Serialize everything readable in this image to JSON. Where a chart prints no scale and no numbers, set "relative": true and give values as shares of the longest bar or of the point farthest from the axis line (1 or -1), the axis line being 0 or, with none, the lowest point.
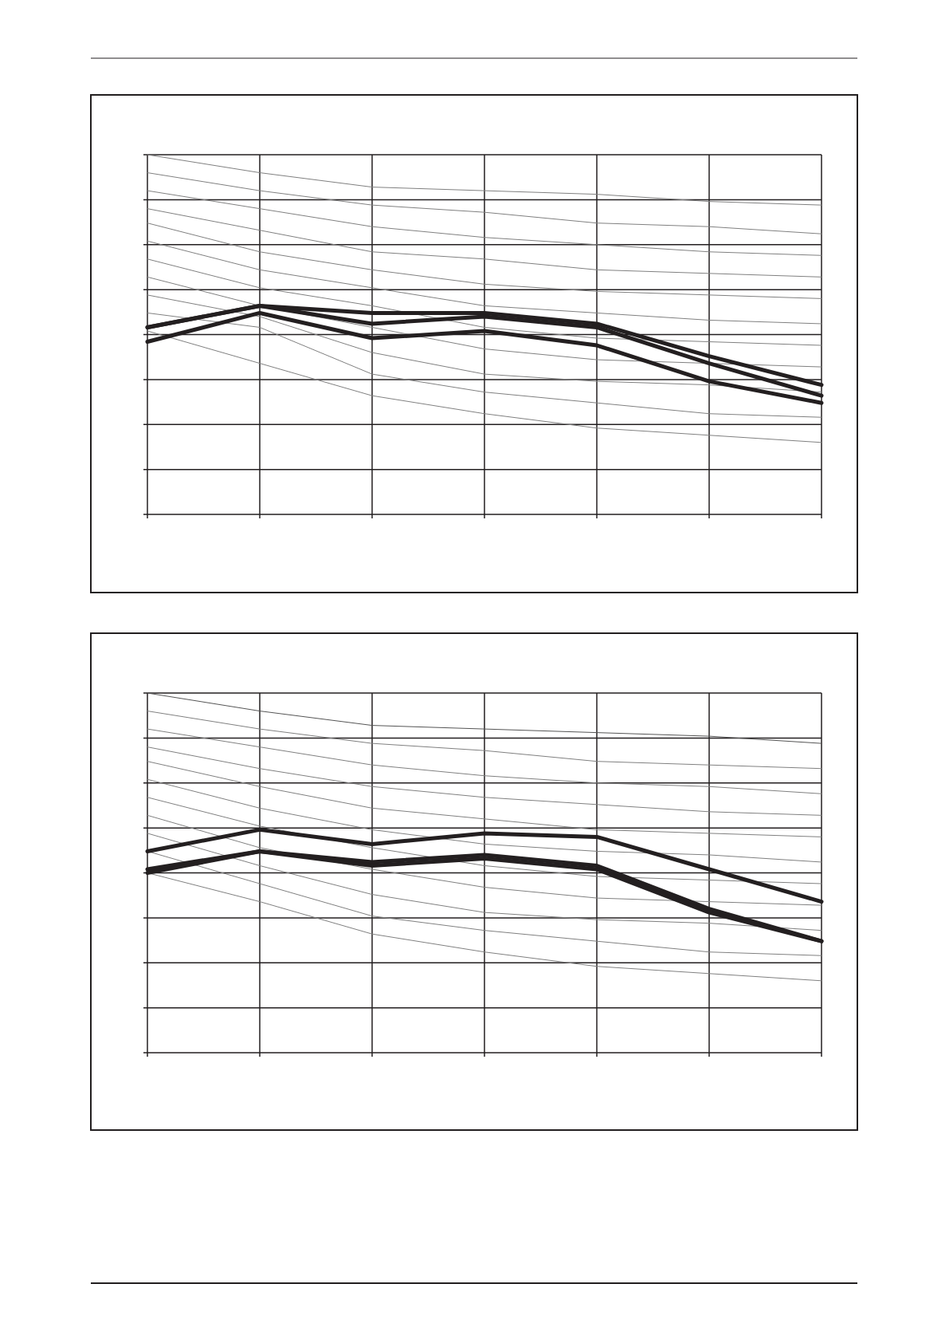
{
  "chart_data": [
    {
      "type": "line",
      "categories": [
        null,
        null,
        null,
        null,
        null,
        null,
        null
      ],
      "relative": true,
      "grid": true,
      "series": [
        {
          "color": "#808080",
          "values": [
            1.0,
            0.95,
            0.91,
            0.9,
            0.89,
            0.87,
            0.86
          ]
        },
        {
          "color": "#808080",
          "values": [
            0.95,
            0.9,
            0.86,
            0.84,
            0.81,
            0.8,
            0.78
          ]
        },
        {
          "color": "#808080",
          "values": [
            0.9,
            0.85,
            0.8,
            0.77,
            0.75,
            0.73,
            0.72
          ]
        },
        {
          "color": "#808080",
          "values": [
            0.85,
            0.79,
            0.73,
            0.71,
            0.68,
            0.67,
            0.66
          ]
        },
        {
          "color": "#808080",
          "values": [
            0.81,
            0.73,
            0.68,
            0.64,
            0.62,
            0.61,
            0.6
          ]
        },
        {
          "color": "#808080",
          "values": [
            0.76,
            0.68,
            0.63,
            0.58,
            0.56,
            0.54,
            0.53
          ]
        },
        {
          "color": "#808080",
          "values": [
            0.71,
            0.63,
            0.58,
            0.52,
            0.49,
            0.48,
            0.47
          ]
        },
        {
          "color": "#808080",
          "values": [
            0.66,
            0.58,
            0.52,
            0.46,
            0.43,
            0.42,
            0.41
          ]
        },
        {
          "color": "#808080",
          "values": [
            0.61,
            0.55,
            0.45,
            0.39,
            0.37,
            0.36,
            0.34
          ]
        },
        {
          "color": "#808080",
          "values": [
            0.56,
            0.52,
            0.39,
            0.34,
            0.31,
            0.28,
            0.27
          ]
        },
        {
          "color": "#808080",
          "values": [
            0.51,
            0.42,
            0.33,
            0.28,
            0.24,
            0.22,
            0.2
          ]
        },
        {
          "color": "#231f20",
          "values": [
            0.52,
            0.58,
            0.56,
            0.56,
            0.53,
            0.44,
            0.36
          ]
        },
        {
          "color": "#231f20",
          "values": [
            0.52,
            0.58,
            0.53,
            0.55,
            0.52,
            0.42,
            0.33
          ]
        },
        {
          "color": "#231f20",
          "values": [
            0.48,
            0.56,
            0.49,
            0.51,
            0.47,
            0.37,
            0.31
          ]
        }
      ]
    },
    {
      "type": "line",
      "categories": [
        null,
        null,
        null,
        null,
        null,
        null,
        null
      ],
      "relative": true,
      "grid": true,
      "series": [
        {
          "color": "#555555",
          "values": [
            1.0,
            0.95,
            0.91,
            0.9,
            0.89,
            0.88,
            0.86
          ]
        },
        {
          "color": "#808080",
          "values": [
            0.95,
            0.9,
            0.86,
            0.84,
            0.81,
            0.8,
            0.79
          ]
        },
        {
          "color": "#808080",
          "values": [
            0.9,
            0.85,
            0.8,
            0.77,
            0.75,
            0.74,
            0.72
          ]
        },
        {
          "color": "#808080",
          "values": [
            0.85,
            0.79,
            0.74,
            0.71,
            0.69,
            0.67,
            0.66
          ]
        },
        {
          "color": "#808080",
          "values": [
            0.81,
            0.74,
            0.68,
            0.65,
            0.62,
            0.61,
            0.6
          ]
        },
        {
          "color": "#808080",
          "values": [
            0.76,
            0.68,
            0.62,
            0.58,
            0.56,
            0.55,
            0.53
          ]
        },
        {
          "color": "#808080",
          "values": [
            0.71,
            0.63,
            0.57,
            0.52,
            0.49,
            0.48,
            0.47
          ]
        },
        {
          "color": "#808080",
          "values": [
            0.66,
            0.57,
            0.51,
            0.46,
            0.43,
            0.42,
            0.41
          ]
        },
        {
          "color": "#808080",
          "values": [
            0.61,
            0.52,
            0.44,
            0.39,
            0.37,
            0.36,
            0.34
          ]
        },
        {
          "color": "#808080",
          "values": [
            0.56,
            0.47,
            0.38,
            0.34,
            0.31,
            0.28,
            0.27
          ]
        },
        {
          "color": "#808080",
          "values": [
            0.5,
            0.42,
            0.33,
            0.28,
            0.24,
            0.22,
            0.2
          ]
        },
        {
          "color": "#231f20",
          "values": [
            0.56,
            0.62,
            0.58,
            0.61,
            0.6,
            0.51,
            0.42
          ]
        },
        {
          "color": "#231f20",
          "values": [
            0.51,
            0.56,
            0.53,
            0.55,
            0.52,
            0.4,
            0.31
          ]
        },
        {
          "color": "#231f20",
          "values": [
            0.5,
            0.56,
            0.52,
            0.54,
            0.51,
            0.39,
            0.31
          ]
        }
      ]
    }
  ]
}
